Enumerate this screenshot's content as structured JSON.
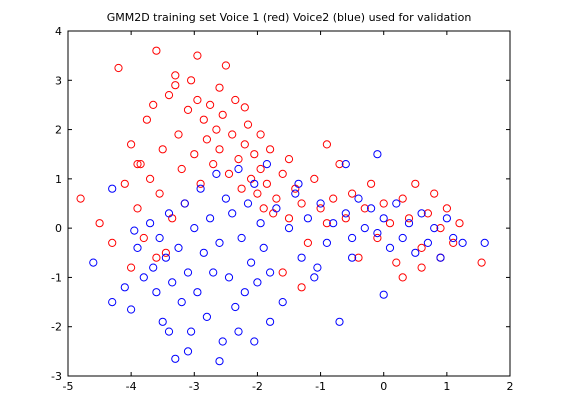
{
  "chart_data": {
    "type": "scatter",
    "title": "GMM2D training set Voice 1 (red) Voice2 (blue) used for validation",
    "xlabel": "",
    "ylabel": "",
    "xlim": [
      -5,
      2
    ],
    "ylim": [
      -3,
      4
    ],
    "x_ticks": [
      "-5",
      "-4",
      "-3",
      "-2",
      "-1",
      "0",
      "1",
      "2"
    ],
    "y_ticks": [
      "-3",
      "-2",
      "-1",
      "0",
      "1",
      "2",
      "3",
      "4"
    ],
    "grid": false,
    "legend": "none",
    "marker": "open-circle",
    "series": [
      {
        "color": "#ff0000",
        "points": [
          [
            -4.8,
            0.6
          ],
          [
            -4.5,
            0.1
          ],
          [
            -4.3,
            -0.3
          ],
          [
            -4.2,
            3.25
          ],
          [
            -4.1,
            0.9
          ],
          [
            -4.0,
            1.7
          ],
          [
            -3.9,
            0.4
          ],
          [
            -3.85,
            1.3
          ],
          [
            -3.8,
            -0.2
          ],
          [
            -3.75,
            2.2
          ],
          [
            -3.7,
            1.0
          ],
          [
            -3.65,
            2.5
          ],
          [
            -3.6,
            3.6
          ],
          [
            -3.55,
            0.7
          ],
          [
            -3.5,
            1.6
          ],
          [
            -3.45,
            -0.5
          ],
          [
            -3.4,
            2.7
          ],
          [
            -3.35,
            0.2
          ],
          [
            -3.3,
            2.9
          ],
          [
            -3.25,
            1.9
          ],
          [
            -3.2,
            1.2
          ],
          [
            -3.15,
            0.5
          ],
          [
            -3.1,
            2.4
          ],
          [
            -3.05,
            3.0
          ],
          [
            -3.0,
            1.5
          ],
          [
            -2.95,
            3.5
          ],
          [
            -2.9,
            0.9
          ],
          [
            -2.85,
            2.2
          ],
          [
            -2.8,
            1.8
          ],
          [
            -2.75,
            2.5
          ],
          [
            -2.7,
            1.3
          ],
          [
            -2.65,
            2.0
          ],
          [
            -2.6,
            1.6
          ],
          [
            -2.55,
            2.3
          ],
          [
            -2.5,
            3.3
          ],
          [
            -2.45,
            1.1
          ],
          [
            -2.4,
            1.9
          ],
          [
            -2.35,
            2.6
          ],
          [
            -2.3,
            1.4
          ],
          [
            -2.25,
            0.8
          ],
          [
            -2.2,
            1.7
          ],
          [
            -2.15,
            2.1
          ],
          [
            -2.1,
            1.0
          ],
          [
            -2.05,
            1.5
          ],
          [
            -2.0,
            0.7
          ],
          [
            -1.95,
            1.2
          ],
          [
            -1.9,
            0.4
          ],
          [
            -1.85,
            0.9
          ],
          [
            -1.8,
            1.6
          ],
          [
            -1.75,
            0.3
          ],
          [
            -1.7,
            0.6
          ],
          [
            -1.6,
            1.1
          ],
          [
            -1.5,
            0.2
          ],
          [
            -1.4,
            0.8
          ],
          [
            -1.3,
            0.5
          ],
          [
            -1.2,
            -0.3
          ],
          [
            -1.1,
            1.0
          ],
          [
            -1.0,
            0.4
          ],
          [
            -0.9,
            0.1
          ],
          [
            -0.8,
            0.6
          ],
          [
            -0.7,
            1.3
          ],
          [
            -0.6,
            0.2
          ],
          [
            -0.5,
            0.7
          ],
          [
            -0.4,
            -0.6
          ],
          [
            -0.3,
            0.4
          ],
          [
            -0.2,
            0.9
          ],
          [
            -0.1,
            -0.2
          ],
          [
            0.0,
            0.5
          ],
          [
            0.1,
            0.1
          ],
          [
            0.2,
            -0.7
          ],
          [
            0.3,
            0.6
          ],
          [
            0.4,
            0.2
          ],
          [
            0.5,
            0.9
          ],
          [
            0.6,
            -0.4
          ],
          [
            0.7,
            0.3
          ],
          [
            0.8,
            0.7
          ],
          [
            0.9,
            0.0
          ],
          [
            1.0,
            0.4
          ],
          [
            1.1,
            -0.3
          ],
          [
            1.2,
            0.1
          ],
          [
            1.55,
            -0.7
          ],
          [
            -3.9,
            1.3
          ],
          [
            -3.3,
            3.1
          ],
          [
            -2.95,
            2.6
          ],
          [
            -2.6,
            2.85
          ],
          [
            -2.2,
            2.45
          ],
          [
            -1.95,
            1.9
          ],
          [
            -1.5,
            1.4
          ],
          [
            -0.9,
            1.7
          ],
          [
            -4.0,
            -0.8
          ],
          [
            -3.6,
            -0.6
          ],
          [
            -1.6,
            -0.9
          ],
          [
            -1.3,
            -1.2
          ],
          [
            0.3,
            -1.0
          ],
          [
            0.6,
            -0.8
          ],
          [
            0.9,
            -0.6
          ]
        ]
      },
      {
        "color": "#0000ff",
        "points": [
          [
            -4.6,
            -0.7
          ],
          [
            -4.3,
            -1.5
          ],
          [
            -4.1,
            -1.2
          ],
          [
            -4.0,
            -1.65
          ],
          [
            -3.9,
            -0.4
          ],
          [
            -3.8,
            -1.0
          ],
          [
            -3.7,
            0.1
          ],
          [
            -3.65,
            -0.8
          ],
          [
            -3.6,
            -1.3
          ],
          [
            -3.55,
            -0.2
          ],
          [
            -3.5,
            -1.9
          ],
          [
            -3.45,
            -0.6
          ],
          [
            -3.4,
            0.3
          ],
          [
            -3.35,
            -1.1
          ],
          [
            -3.3,
            -2.65
          ],
          [
            -3.25,
            -0.4
          ],
          [
            -3.2,
            -1.5
          ],
          [
            -3.15,
            0.5
          ],
          [
            -3.1,
            -0.9
          ],
          [
            -3.05,
            -2.1
          ],
          [
            -3.0,
            0.0
          ],
          [
            -2.95,
            -1.3
          ],
          [
            -2.9,
            0.8
          ],
          [
            -2.85,
            -0.5
          ],
          [
            -2.8,
            -1.8
          ],
          [
            -2.75,
            0.2
          ],
          [
            -2.7,
            -0.9
          ],
          [
            -2.65,
            1.1
          ],
          [
            -2.6,
            -0.3
          ],
          [
            -2.55,
            -2.3
          ],
          [
            -2.5,
            0.6
          ],
          [
            -2.45,
            -1.0
          ],
          [
            -2.4,
            0.3
          ],
          [
            -2.35,
            -1.6
          ],
          [
            -2.3,
            1.2
          ],
          [
            -2.25,
            -0.2
          ],
          [
            -2.2,
            -1.3
          ],
          [
            -2.15,
            0.5
          ],
          [
            -2.1,
            -0.7
          ],
          [
            -2.05,
            0.9
          ],
          [
            -2.0,
            -1.1
          ],
          [
            -1.95,
            0.1
          ],
          [
            -1.9,
            -0.4
          ],
          [
            -1.85,
            1.3
          ],
          [
            -1.8,
            -0.9
          ],
          [
            -1.7,
            0.4
          ],
          [
            -1.6,
            -1.5
          ],
          [
            -1.5,
            0.0
          ],
          [
            -1.4,
            0.7
          ],
          [
            -1.3,
            -0.6
          ],
          [
            -1.2,
            0.2
          ],
          [
            -1.1,
            -1.0
          ],
          [
            -1.0,
            0.5
          ],
          [
            -0.9,
            -0.3
          ],
          [
            -0.8,
            0.1
          ],
          [
            -0.7,
            -1.9
          ],
          [
            -0.6,
            0.3
          ],
          [
            -0.5,
            -0.2
          ],
          [
            -0.4,
            0.6
          ],
          [
            -0.3,
            0.0
          ],
          [
            -0.2,
            0.4
          ],
          [
            -0.1,
            -0.1
          ],
          [
            0.0,
            0.2
          ],
          [
            0.1,
            -0.4
          ],
          [
            0.2,
            0.5
          ],
          [
            0.3,
            -0.2
          ],
          [
            0.4,
            0.1
          ],
          [
            0.5,
            -0.5
          ],
          [
            0.6,
            0.3
          ],
          [
            0.7,
            -0.3
          ],
          [
            0.8,
            0.0
          ],
          [
            0.9,
            -0.6
          ],
          [
            1.0,
            0.2
          ],
          [
            1.1,
            -0.2
          ],
          [
            1.25,
            -0.3
          ],
          [
            1.6,
            -0.3
          ],
          [
            -4.3,
            0.8
          ],
          [
            -3.95,
            -0.05
          ],
          [
            -3.4,
            -2.1
          ],
          [
            -3.1,
            -2.5
          ],
          [
            -2.6,
            -2.7
          ],
          [
            -2.3,
            -2.1
          ],
          [
            -2.05,
            -2.3
          ],
          [
            -1.8,
            -1.9
          ],
          [
            -1.35,
            0.9
          ],
          [
            -0.6,
            1.3
          ],
          [
            -0.1,
            1.5
          ],
          [
            0.0,
            -1.35
          ],
          [
            -0.5,
            -0.6
          ],
          [
            -1.05,
            -0.8
          ]
        ]
      }
    ]
  }
}
